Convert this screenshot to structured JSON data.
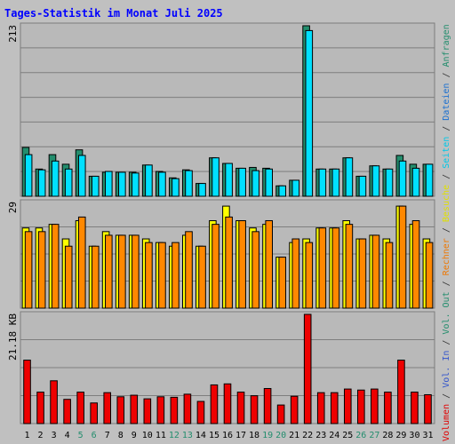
{
  "chart_data": {
    "type": "bar",
    "title": "Tages-Statistik im Monat Juli 2025",
    "categories": [
      "1",
      "2",
      "3",
      "4",
      "5",
      "6",
      "7",
      "8",
      "9",
      "10",
      "11",
      "12",
      "13",
      "14",
      "15",
      "16",
      "17",
      "18",
      "19",
      "20",
      "21",
      "22",
      "23",
      "24",
      "25",
      "26",
      "27",
      "28",
      "29",
      "30",
      "31"
    ],
    "weekend_days": [
      "5",
      "6",
      "12",
      "13",
      "19",
      "20",
      "26",
      "27"
    ],
    "side_legend": [
      {
        "text": "Volumen",
        "color": "#e00000"
      },
      {
        "text": " / ",
        "color": "#333333"
      },
      {
        "text": "Vol. In",
        "color": "#3355cc"
      },
      {
        "text": " / ",
        "color": "#333333"
      },
      {
        "text": "Vol. Out",
        "color": "#238d6d"
      },
      {
        "text": " / ",
        "color": "#333333"
      },
      {
        "text": "Rechner",
        "color": "#ee7700"
      },
      {
        "text": " / ",
        "color": "#333333"
      },
      {
        "text": "Besuche",
        "color": "#e0e000"
      },
      {
        "text": " / ",
        "color": "#333333"
      },
      {
        "text": "Seiten",
        "color": "#00c8e8"
      },
      {
        "text": " / ",
        "color": "#333333"
      },
      {
        "text": "Dateien",
        "color": "#1a6fd0"
      },
      {
        "text": " / ",
        "color": "#333333"
      },
      {
        "text": "Anfragen",
        "color": "#238d6d"
      }
    ],
    "panels": [
      {
        "id": "requests",
        "ymax_label": "213",
        "ylim": [
          0,
          213
        ],
        "series": [
          {
            "name": "Anfragen",
            "color": "#238d6d",
            "values": [
              61,
              34,
              52,
              40,
              58,
              25,
              30,
              30,
              30,
              39,
              31,
              23,
              33,
              16,
              48,
              41,
              35,
              36,
              35,
              13,
              20,
              213,
              34,
              34,
              48,
              25,
              38,
              34,
              51,
              40,
              40
            ]
          },
          {
            "name": "Seiten",
            "color": "#00e0ff",
            "values": [
              52,
              33,
              44,
              34,
              51,
              25,
              31,
              30,
              29,
              39,
              30,
              22,
              32,
              16,
              48,
              41,
              35,
              32,
              34,
              13,
              20,
              207,
              34,
              34,
              48,
              25,
              38,
              34,
              44,
              35,
              40
            ]
          }
        ]
      },
      {
        "id": "visits",
        "ymax_label": "29",
        "ylim": [
          0,
          29
        ],
        "series": [
          {
            "name": "Besuche",
            "color": "#ffff00",
            "values": [
              22,
              22,
              23,
              19,
              24,
              17,
              21,
              20,
              20,
              19,
              18,
              17,
              20,
              17,
              24,
              28,
              24,
              22,
              23,
              14,
              18,
              19,
              22,
              22,
              24,
              19,
              20,
              19,
              28,
              23,
              19
            ]
          },
          {
            "name": "Rechner",
            "color": "#ff8800",
            "values": [
              21,
              21,
              23,
              17,
              25,
              17,
              20,
              20,
              20,
              18,
              18,
              18,
              21,
              17,
              23,
              25,
              24,
              21,
              24,
              14,
              19,
              18,
              22,
              22,
              23,
              19,
              20,
              18,
              28,
              24,
              18
            ]
          }
        ]
      },
      {
        "id": "volume",
        "ymax_label": "21.18 KB",
        "ylim": [
          0,
          21.18
        ],
        "series": [
          {
            "name": "Volumen",
            "color": "#ee0000",
            "values": [
              12.3,
              6.1,
              8.3,
              4.7,
              6.1,
              4.0,
              6.0,
              5.2,
              5.5,
              4.8,
              5.2,
              5.1,
              5.7,
              4.3,
              7.5,
              7.7,
              6.1,
              5.4,
              6.8,
              3.6,
              5.3,
              21.18,
              6.0,
              6.0,
              6.7,
              6.5,
              6.7,
              6.1,
              12.3,
              6.1,
              5.6
            ]
          }
        ]
      }
    ]
  }
}
